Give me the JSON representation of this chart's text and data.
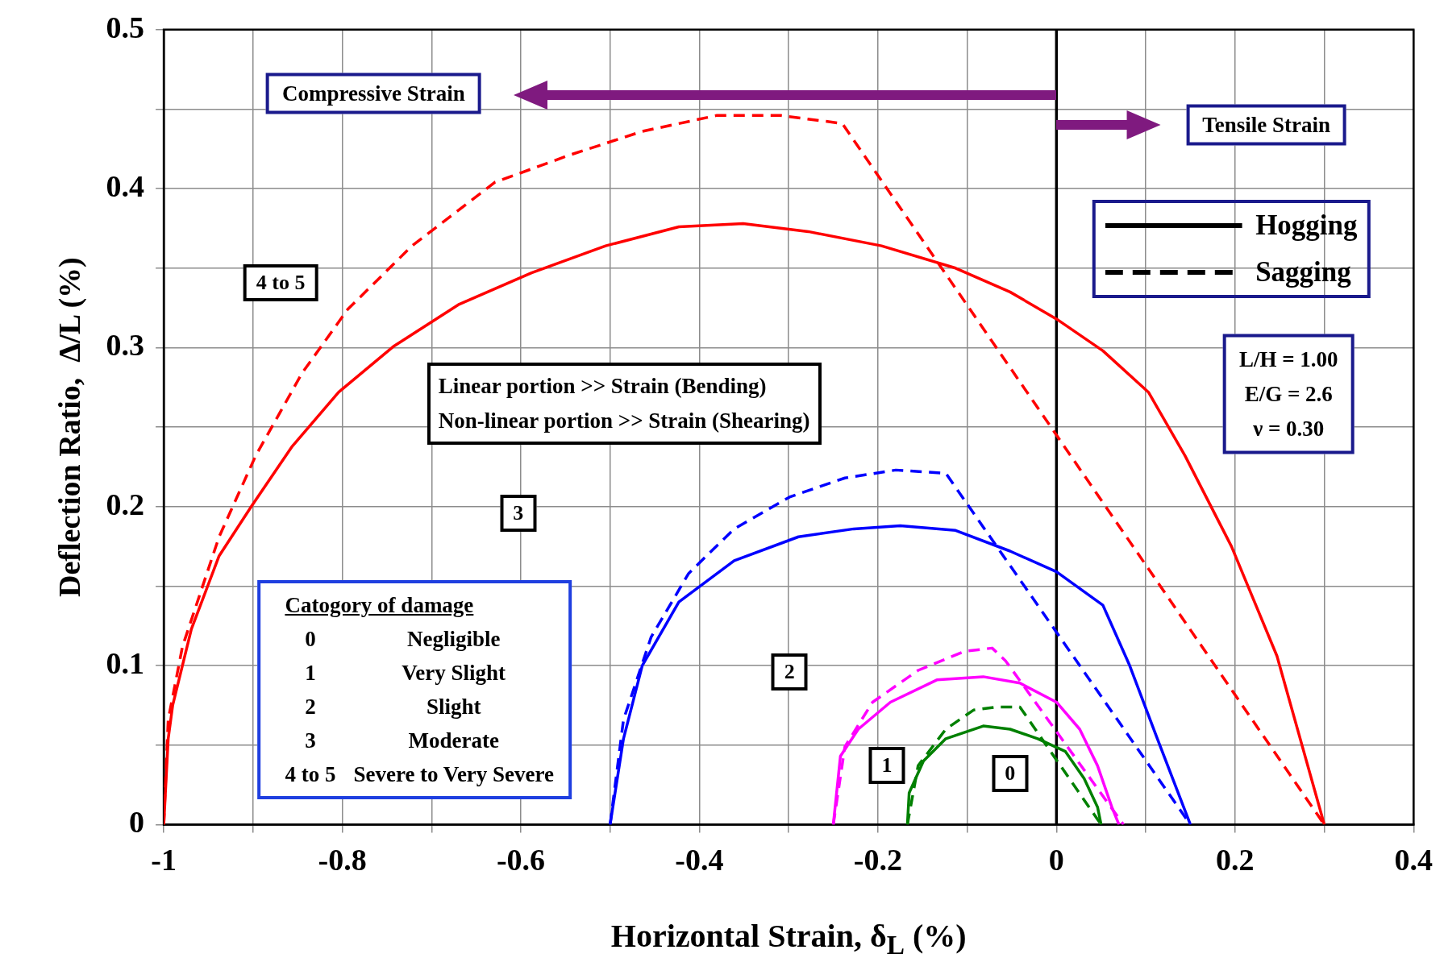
{
  "chart_data": {
    "type": "line",
    "xlabel": "Horizontal Strain, δ$_{L}$ (%)",
    "ylabel": "Deflection Ratio,  Δ/L (%)",
    "xlim": [
      -1,
      0.4
    ],
    "xticks": [
      -1,
      {
        "value": -0.9,
        "label": null
      },
      -0.8,
      {
        "value": -0.7,
        "label": null
      },
      -0.6,
      {
        "value": -0.5,
        "label": null
      },
      -0.4,
      {
        "value": -0.3,
        "label": null
      },
      -0.2,
      {
        "value": -0.1,
        "label": null
      },
      0,
      {
        "value": 0.1,
        "label": null
      },
      0.2,
      {
        "value": 0.3,
        "label": null
      },
      0.4
    ],
    "ylim": [
      0,
      0.5
    ],
    "yticks": [
      0,
      {
        "value": 0.05,
        "label": null
      },
      0.1,
      {
        "value": 0.15,
        "label": null
      },
      0.2,
      {
        "value": 0.25,
        "label": null
      },
      0.3,
      {
        "value": 0.35,
        "label": null
      },
      0.4,
      {
        "value": 0.45,
        "label": null
      },
      0.5
    ],
    "grid": true,
    "marker": "none",
    "series": [
      {
        "color": "#ff0000",
        "line_style": "solid",
        "x": [
          -1,
          -0.995,
          -0.99,
          -0.969,
          -0.938,
          -0.902,
          -0.856,
          -0.804,
          -0.742,
          -0.67,
          -0.588,
          -0.505,
          -0.423,
          -0.351,
          -0.278,
          -0.196,
          -0.113,
          -0.052,
          0,
          0.052,
          0.103,
          0.144,
          0.196,
          0.247,
          0.3
        ],
        "values": [
          0,
          0.054,
          0.075,
          0.123,
          0.169,
          0.2,
          0.238,
          0.272,
          0.301,
          0.327,
          0.347,
          0.364,
          0.376,
          0.378,
          0.373,
          0.364,
          0.35,
          0.335,
          0.318,
          0.298,
          0.272,
          0.232,
          0.175,
          0.106,
          0
        ]
      },
      {
        "color": "#ff0000",
        "line_style": "dashed",
        "x": [
          -1,
          -0.995,
          -0.979,
          -0.938,
          -0.897,
          -0.845,
          -0.794,
          -0.722,
          -0.629,
          -0.546,
          -0.464,
          -0.381,
          -0.309,
          -0.24,
          0,
          0.3
        ],
        "values": [
          0,
          0.066,
          0.112,
          0.181,
          0.232,
          0.284,
          0.324,
          0.364,
          0.404,
          0.421,
          0.436,
          0.446,
          0.446,
          0.441,
          0.245,
          0
        ]
      },
      {
        "color": "#0000ff",
        "line_style": "solid",
        "x": [
          -0.5,
          -0.485,
          -0.464,
          -0.423,
          -0.361,
          -0.289,
          -0.227,
          -0.175,
          -0.113,
          -0.052,
          0,
          0.052,
          0.082,
          0.113,
          0.15
        ],
        "values": [
          0,
          0.054,
          0.1,
          0.14,
          0.166,
          0.181,
          0.186,
          0.188,
          0.185,
          0.172,
          0.159,
          0.138,
          0.1,
          0.054,
          0
        ]
      },
      {
        "color": "#0000ff",
        "line_style": "dashed",
        "x": [
          -0.5,
          -0.485,
          -0.454,
          -0.412,
          -0.361,
          -0.299,
          -0.237,
          -0.18,
          -0.124,
          0,
          0.15
        ],
        "values": [
          0,
          0.066,
          0.118,
          0.158,
          0.186,
          0.206,
          0.218,
          0.223,
          0.221,
          0.121,
          0
        ]
      },
      {
        "color": "#ff00ff",
        "line_style": "solid",
        "x": [
          -0.25,
          -0.242,
          -0.222,
          -0.186,
          -0.134,
          -0.082,
          -0.041,
          0,
          0.026,
          0.046,
          0.062,
          0.07
        ],
        "values": [
          0,
          0.043,
          0.06,
          0.077,
          0.091,
          0.093,
          0.089,
          0.077,
          0.06,
          0.037,
          0.011,
          0
        ]
      },
      {
        "color": "#ff00ff",
        "line_style": "dashed",
        "x": [
          -0.25,
          -0.237,
          -0.206,
          -0.155,
          -0.103,
          -0.072,
          -0.057,
          0.075
        ],
        "values": [
          0,
          0.049,
          0.077,
          0.097,
          0.109,
          0.111,
          0.103,
          0
        ]
      },
      {
        "color": "#008000",
        "line_style": "solid",
        "x": [
          -0.167,
          -0.165,
          -0.149,
          -0.124,
          -0.082,
          -0.052,
          -0.021,
          0.01,
          0.031,
          0.046,
          0.05
        ],
        "values": [
          0,
          0.02,
          0.04,
          0.054,
          0.062,
          0.06,
          0.054,
          0.046,
          0.029,
          0.011,
          0
        ]
      },
      {
        "color": "#008000",
        "line_style": "dashed",
        "x": [
          -0.167,
          -0.155,
          -0.124,
          -0.093,
          -0.067,
          -0.041,
          0.05
        ],
        "values": [
          0,
          0.037,
          0.06,
          0.072,
          0.074,
          0.074,
          0
        ]
      }
    ],
    "ref_lines": [
      {
        "axis": "x",
        "value": 0,
        "color": "#000000"
      }
    ],
    "annotations": [
      "Compressive Strain",
      "Tensile Strain",
      "Hogging",
      "Sagging",
      "L/H = 1.00",
      "E/G = 2.6",
      "ν = 0.30",
      "Linear portion >> Strain (Bending)",
      "Non-linear portion  >> Strain (Shearing)",
      "Catogory of damage",
      "0",
      "Negligible",
      "1",
      "Very Slight",
      "2",
      "Slight",
      "3",
      "Moderate",
      "4 to 5",
      "Severe to Very Severe",
      "4 to 5",
      "3",
      "2",
      "1",
      "0"
    ]
  }
}
